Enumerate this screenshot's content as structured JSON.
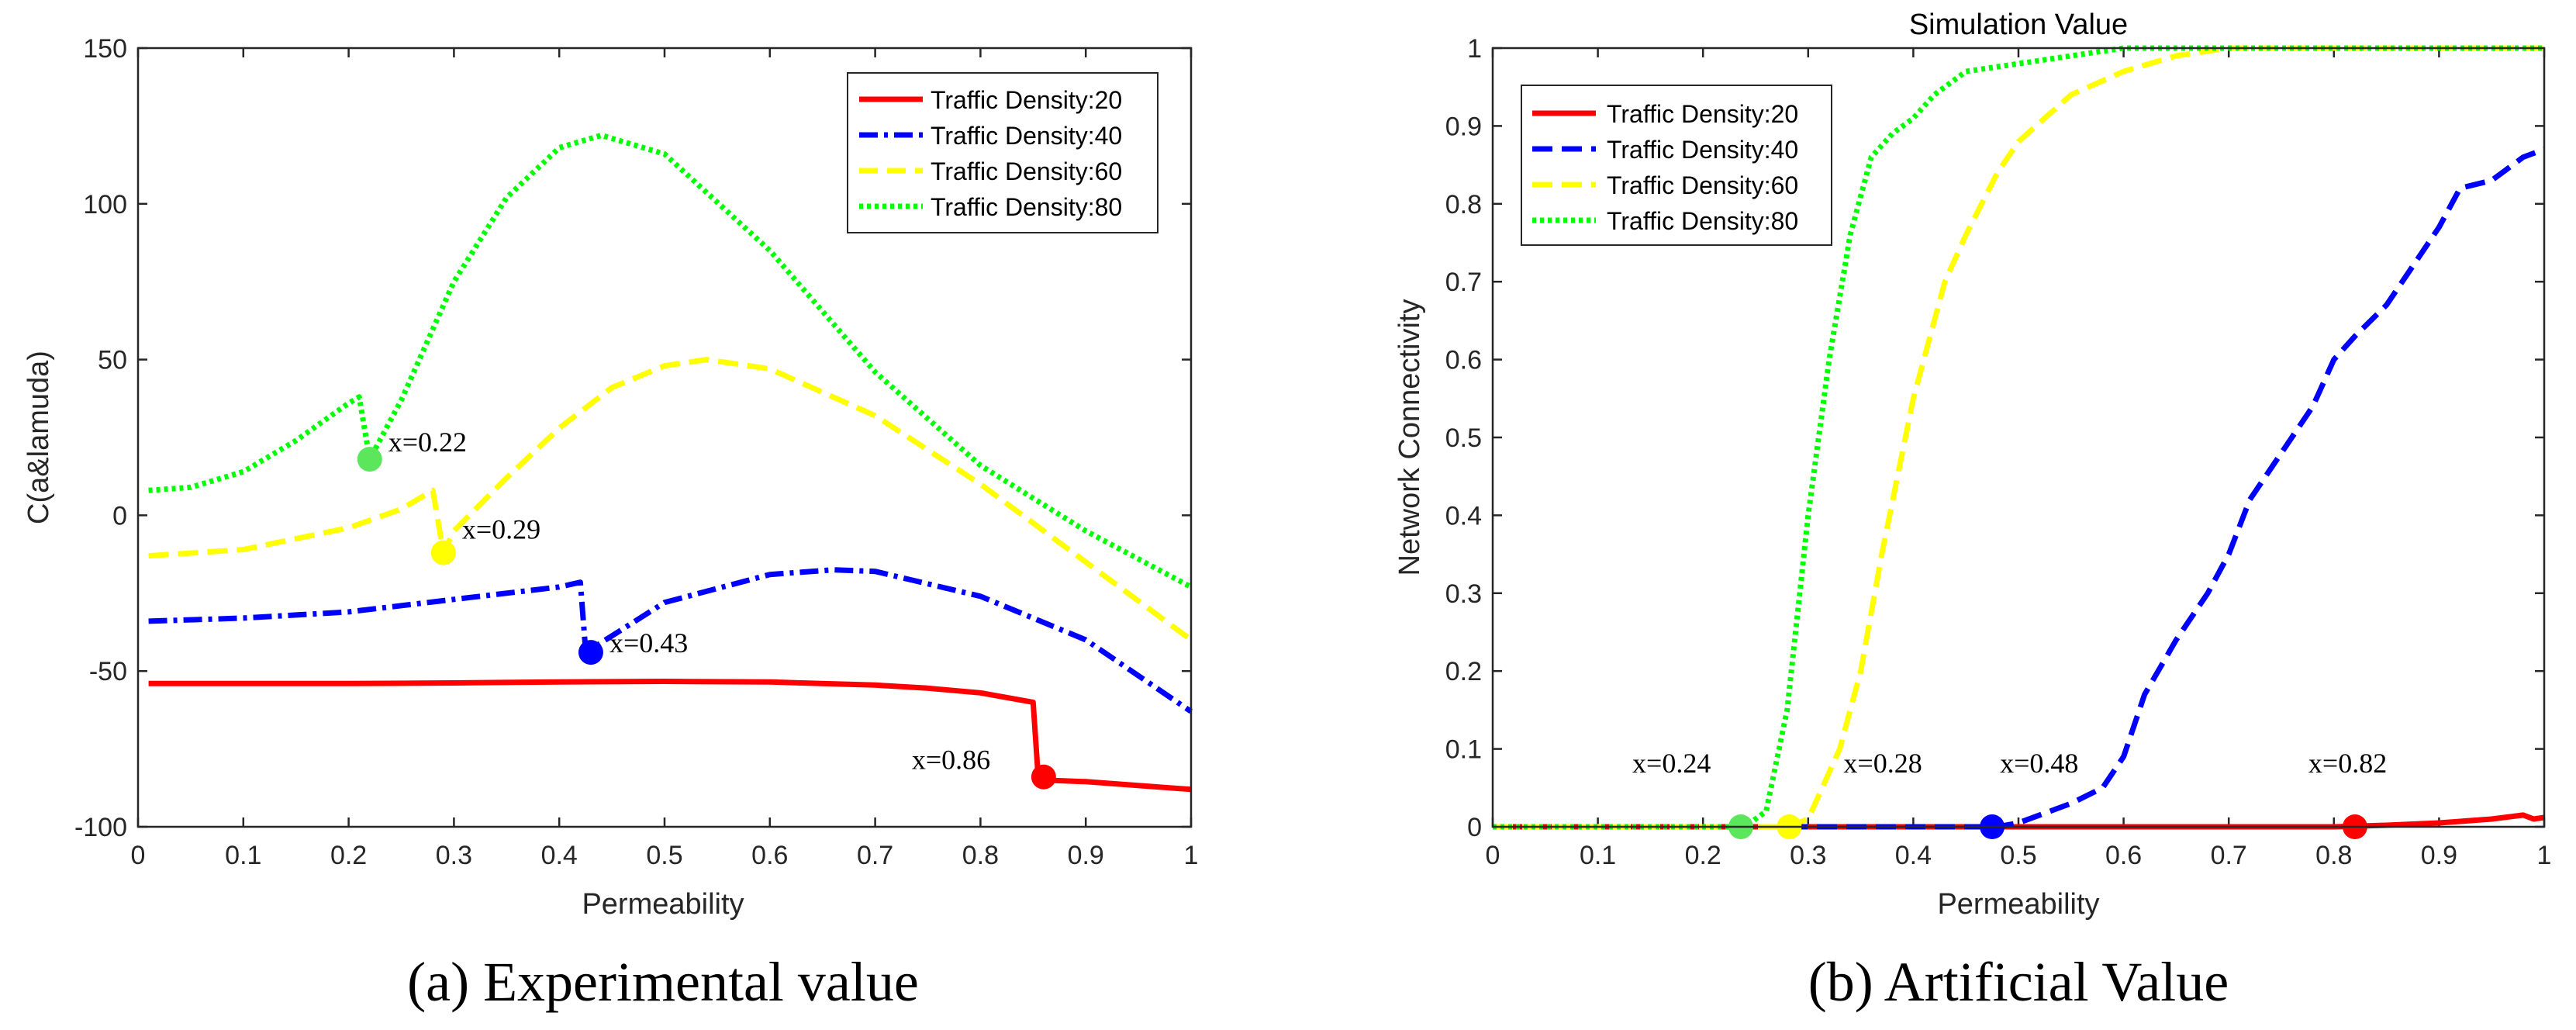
{
  "chart_data": [
    {
      "type": "line",
      "caption": "(a) Experimental value",
      "title": "",
      "xlabel": "Permeability",
      "ylabel": "C(a&lamuda)",
      "xlim": [
        0,
        1
      ],
      "ylim": [
        -100,
        150
      ],
      "xticks": [
        "0",
        "0.1",
        "0.2",
        "0.3",
        "0.4",
        "0.5",
        "0.6",
        "0.7",
        "0.8",
        "0.9",
        "1"
      ],
      "yticks": [
        "-100",
        "-50",
        "0",
        "50",
        "100",
        "150"
      ],
      "legend_position": "top-right",
      "series": [
        {
          "name": "Traffic Density:20",
          "color": "#ff0000",
          "style": "solid",
          "x": [
            0.01,
            0.1,
            0.2,
            0.3,
            0.4,
            0.5,
            0.6,
            0.7,
            0.75,
            0.8,
            0.85,
            0.855,
            0.86,
            0.9,
            1.0
          ],
          "y": [
            -54,
            -54,
            -54,
            -53.8,
            -53.5,
            -53.3,
            -53.5,
            -54.5,
            -55.5,
            -57,
            -60,
            -85,
            -85,
            -85.5,
            -88
          ]
        },
        {
          "name": "Traffic Density:40",
          "color": "#0000ff",
          "style": "dashdot",
          "x": [
            0.01,
            0.1,
            0.2,
            0.3,
            0.4,
            0.42,
            0.425,
            0.43,
            0.5,
            0.6,
            0.66,
            0.7,
            0.8,
            0.9,
            1.0
          ],
          "y": [
            -34,
            -33,
            -31,
            -27,
            -23,
            -21.5,
            -43,
            -43,
            -28,
            -19,
            -17.5,
            -18,
            -26,
            -40,
            -63
          ]
        },
        {
          "name": "Traffic Density:60",
          "color": "#ffff00",
          "style": "dash",
          "x": [
            0.01,
            0.1,
            0.2,
            0.25,
            0.28,
            0.29,
            0.3,
            0.35,
            0.4,
            0.45,
            0.5,
            0.54,
            0.6,
            0.7,
            0.8,
            0.9,
            1.0
          ],
          "y": [
            -13,
            -11,
            -4,
            2,
            8,
            -12,
            -5,
            12,
            28,
            41,
            48,
            50,
            47,
            32,
            10,
            -15,
            -40
          ]
        },
        {
          "name": "Traffic Density:80",
          "color": "#00ff00",
          "style": "dot",
          "x": [
            0.01,
            0.05,
            0.1,
            0.15,
            0.2,
            0.21,
            0.22,
            0.25,
            0.3,
            0.35,
            0.4,
            0.44,
            0.5,
            0.6,
            0.7,
            0.8,
            0.9,
            1.0
          ],
          "y": [
            8,
            9,
            14,
            24,
            36,
            38,
            18,
            37,
            75,
            102,
            118,
            122,
            116,
            85,
            46,
            16,
            -5,
            -23
          ]
        }
      ],
      "markers": [
        {
          "x": 0.22,
          "y": 18,
          "color": "#5ce65c",
          "label": "x=0.22"
        },
        {
          "x": 0.29,
          "y": -12,
          "color": "#ffff00",
          "label": "x=0.29"
        },
        {
          "x": 0.43,
          "y": -44,
          "color": "#0000ff",
          "label": "x=0.43"
        },
        {
          "x": 0.86,
          "y": -84,
          "color": "#ff0000",
          "label": "x=0.86"
        }
      ]
    },
    {
      "type": "line",
      "caption": "(b) Artificial Value",
      "title": "Simulation Value",
      "xlabel": "Permeability",
      "ylabel": "Network Connectivity",
      "xlim": [
        0,
        1
      ],
      "ylim": [
        0,
        1
      ],
      "xticks": [
        "0",
        "0.1",
        "0.2",
        "0.3",
        "0.4",
        "0.5",
        "0.6",
        "0.7",
        "0.8",
        "0.9",
        "1"
      ],
      "yticks": [
        "0",
        "0.1",
        "0.2",
        "0.3",
        "0.4",
        "0.5",
        "0.6",
        "0.7",
        "0.8",
        "0.9",
        "1"
      ],
      "legend_position": "top-left",
      "series": [
        {
          "name": "Traffic Density:20",
          "color": "#ff0000",
          "style": "solid",
          "x": [
            0.0,
            0.1,
            0.2,
            0.3,
            0.4,
            0.5,
            0.6,
            0.7,
            0.8,
            0.85,
            0.9,
            0.95,
            0.98,
            0.99,
            1.0
          ],
          "y": [
            0,
            0,
            0,
            0,
            0,
            0,
            0,
            0,
            0,
            0.002,
            0.005,
            0.01,
            0.015,
            0.01,
            0.012
          ]
        },
        {
          "name": "Traffic Density:40",
          "color": "#0000ff",
          "style": "dash",
          "x": [
            0.0,
            0.3,
            0.48,
            0.5,
            0.55,
            0.58,
            0.6,
            0.62,
            0.65,
            0.68,
            0.7,
            0.72,
            0.75,
            0.78,
            0.8,
            0.82,
            0.85,
            0.88,
            0.9,
            0.92,
            0.95,
            0.98,
            1.0
          ],
          "y": [
            0,
            0,
            0,
            0.005,
            0.03,
            0.05,
            0.09,
            0.17,
            0.24,
            0.3,
            0.35,
            0.42,
            0.48,
            0.54,
            0.6,
            0.63,
            0.67,
            0.73,
            0.77,
            0.82,
            0.83,
            0.86,
            0.87
          ]
        },
        {
          "name": "Traffic Density:60",
          "color": "#ffff00",
          "style": "dash",
          "x": [
            0.0,
            0.28,
            0.3,
            0.33,
            0.35,
            0.37,
            0.4,
            0.43,
            0.45,
            0.48,
            0.5,
            0.55,
            0.6,
            0.65,
            0.7,
            0.8,
            0.9,
            1.0
          ],
          "y": [
            0,
            0,
            0.01,
            0.1,
            0.2,
            0.35,
            0.55,
            0.7,
            0.76,
            0.84,
            0.88,
            0.94,
            0.97,
            0.99,
            1.0,
            1.0,
            1.0,
            1.0
          ]
        },
        {
          "name": "Traffic Density:80",
          "color": "#00ff00",
          "style": "dot",
          "x": [
            0.0,
            0.24,
            0.26,
            0.28,
            0.3,
            0.32,
            0.34,
            0.36,
            0.38,
            0.4,
            0.42,
            0.45,
            0.5,
            0.55,
            0.6,
            0.7,
            0.8,
            0.9,
            1.0
          ],
          "y": [
            0,
            0,
            0.02,
            0.15,
            0.4,
            0.6,
            0.76,
            0.86,
            0.89,
            0.91,
            0.94,
            0.97,
            0.98,
            0.99,
            1.0,
            1.0,
            1.0,
            1.0,
            1.0
          ]
        }
      ],
      "markers": [
        {
          "x": 0.236,
          "y": 0,
          "color": "#5ce65c",
          "label": "x=0.24"
        },
        {
          "x": 0.282,
          "y": 0,
          "color": "#ffff00",
          "label": "x=0.28"
        },
        {
          "x": 0.475,
          "y": 0,
          "color": "#0000ff",
          "label": "x=0.48"
        },
        {
          "x": 0.82,
          "y": 0,
          "color": "#ff0000",
          "label": "x=0.82"
        }
      ]
    }
  ]
}
